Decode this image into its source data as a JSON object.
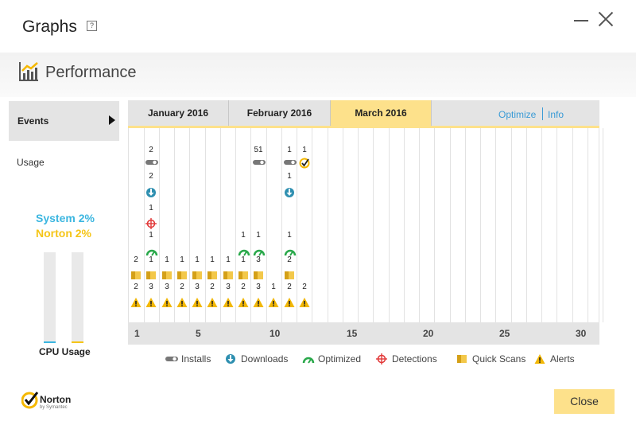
{
  "window": {
    "title": "Graphs",
    "help_glyph": "?"
  },
  "header": {
    "title": "Performance"
  },
  "sidebar": {
    "events": "Events",
    "usage": "Usage"
  },
  "cpu": {
    "system_label": "System 2%",
    "norton_label": "Norton 2%",
    "system_value": 2,
    "norton_value": 2,
    "caption": "CPU Usage",
    "system_color": "#3bb6e0",
    "norton_color": "#f5c518"
  },
  "tabs": [
    {
      "label": "January 2016"
    },
    {
      "label": "February 2016"
    },
    {
      "label": "March 2016",
      "active": true
    }
  ],
  "links": {
    "optimize": "Optimize",
    "info": "Info"
  },
  "axis": {
    "ticks": [
      "1",
      "5",
      "10",
      "15",
      "20",
      "25",
      "30"
    ]
  },
  "events": [
    {
      "day": 1,
      "quickscans": 2,
      "alerts": 2
    },
    {
      "day": 2,
      "installs": 2,
      "downloads": 2,
      "detections": 1,
      "optimized": 1,
      "quickscans": 1,
      "alerts": 3
    },
    {
      "day": 3,
      "quickscans": 1,
      "alerts": 3
    },
    {
      "day": 4,
      "quickscans": 1,
      "alerts": 2
    },
    {
      "day": 5,
      "quickscans": 1,
      "alerts": 3
    },
    {
      "day": 6,
      "quickscans": 1,
      "alerts": 2
    },
    {
      "day": 7,
      "quickscans": 1,
      "alerts": 3
    },
    {
      "day": 8,
      "optimized": 1,
      "quickscans": 1,
      "alerts": 2
    },
    {
      "day": 9,
      "installs": 51,
      "optimized": 1,
      "quickscans": 3,
      "alerts": 3
    },
    {
      "day": 10,
      "alerts": 1
    },
    {
      "day": 11,
      "installs": 1,
      "downloads": 1,
      "optimized": 1,
      "quickscans": 2,
      "alerts": 2
    },
    {
      "day": 12,
      "checked": 1,
      "alerts": 2
    }
  ],
  "legend": [
    "Installs",
    "Downloads",
    "Optimized",
    "Detections",
    "Quick Scans",
    "Alerts"
  ],
  "footer": {
    "close": "Close",
    "brand": "Norton",
    "brand_sub": "by Symantec"
  }
}
